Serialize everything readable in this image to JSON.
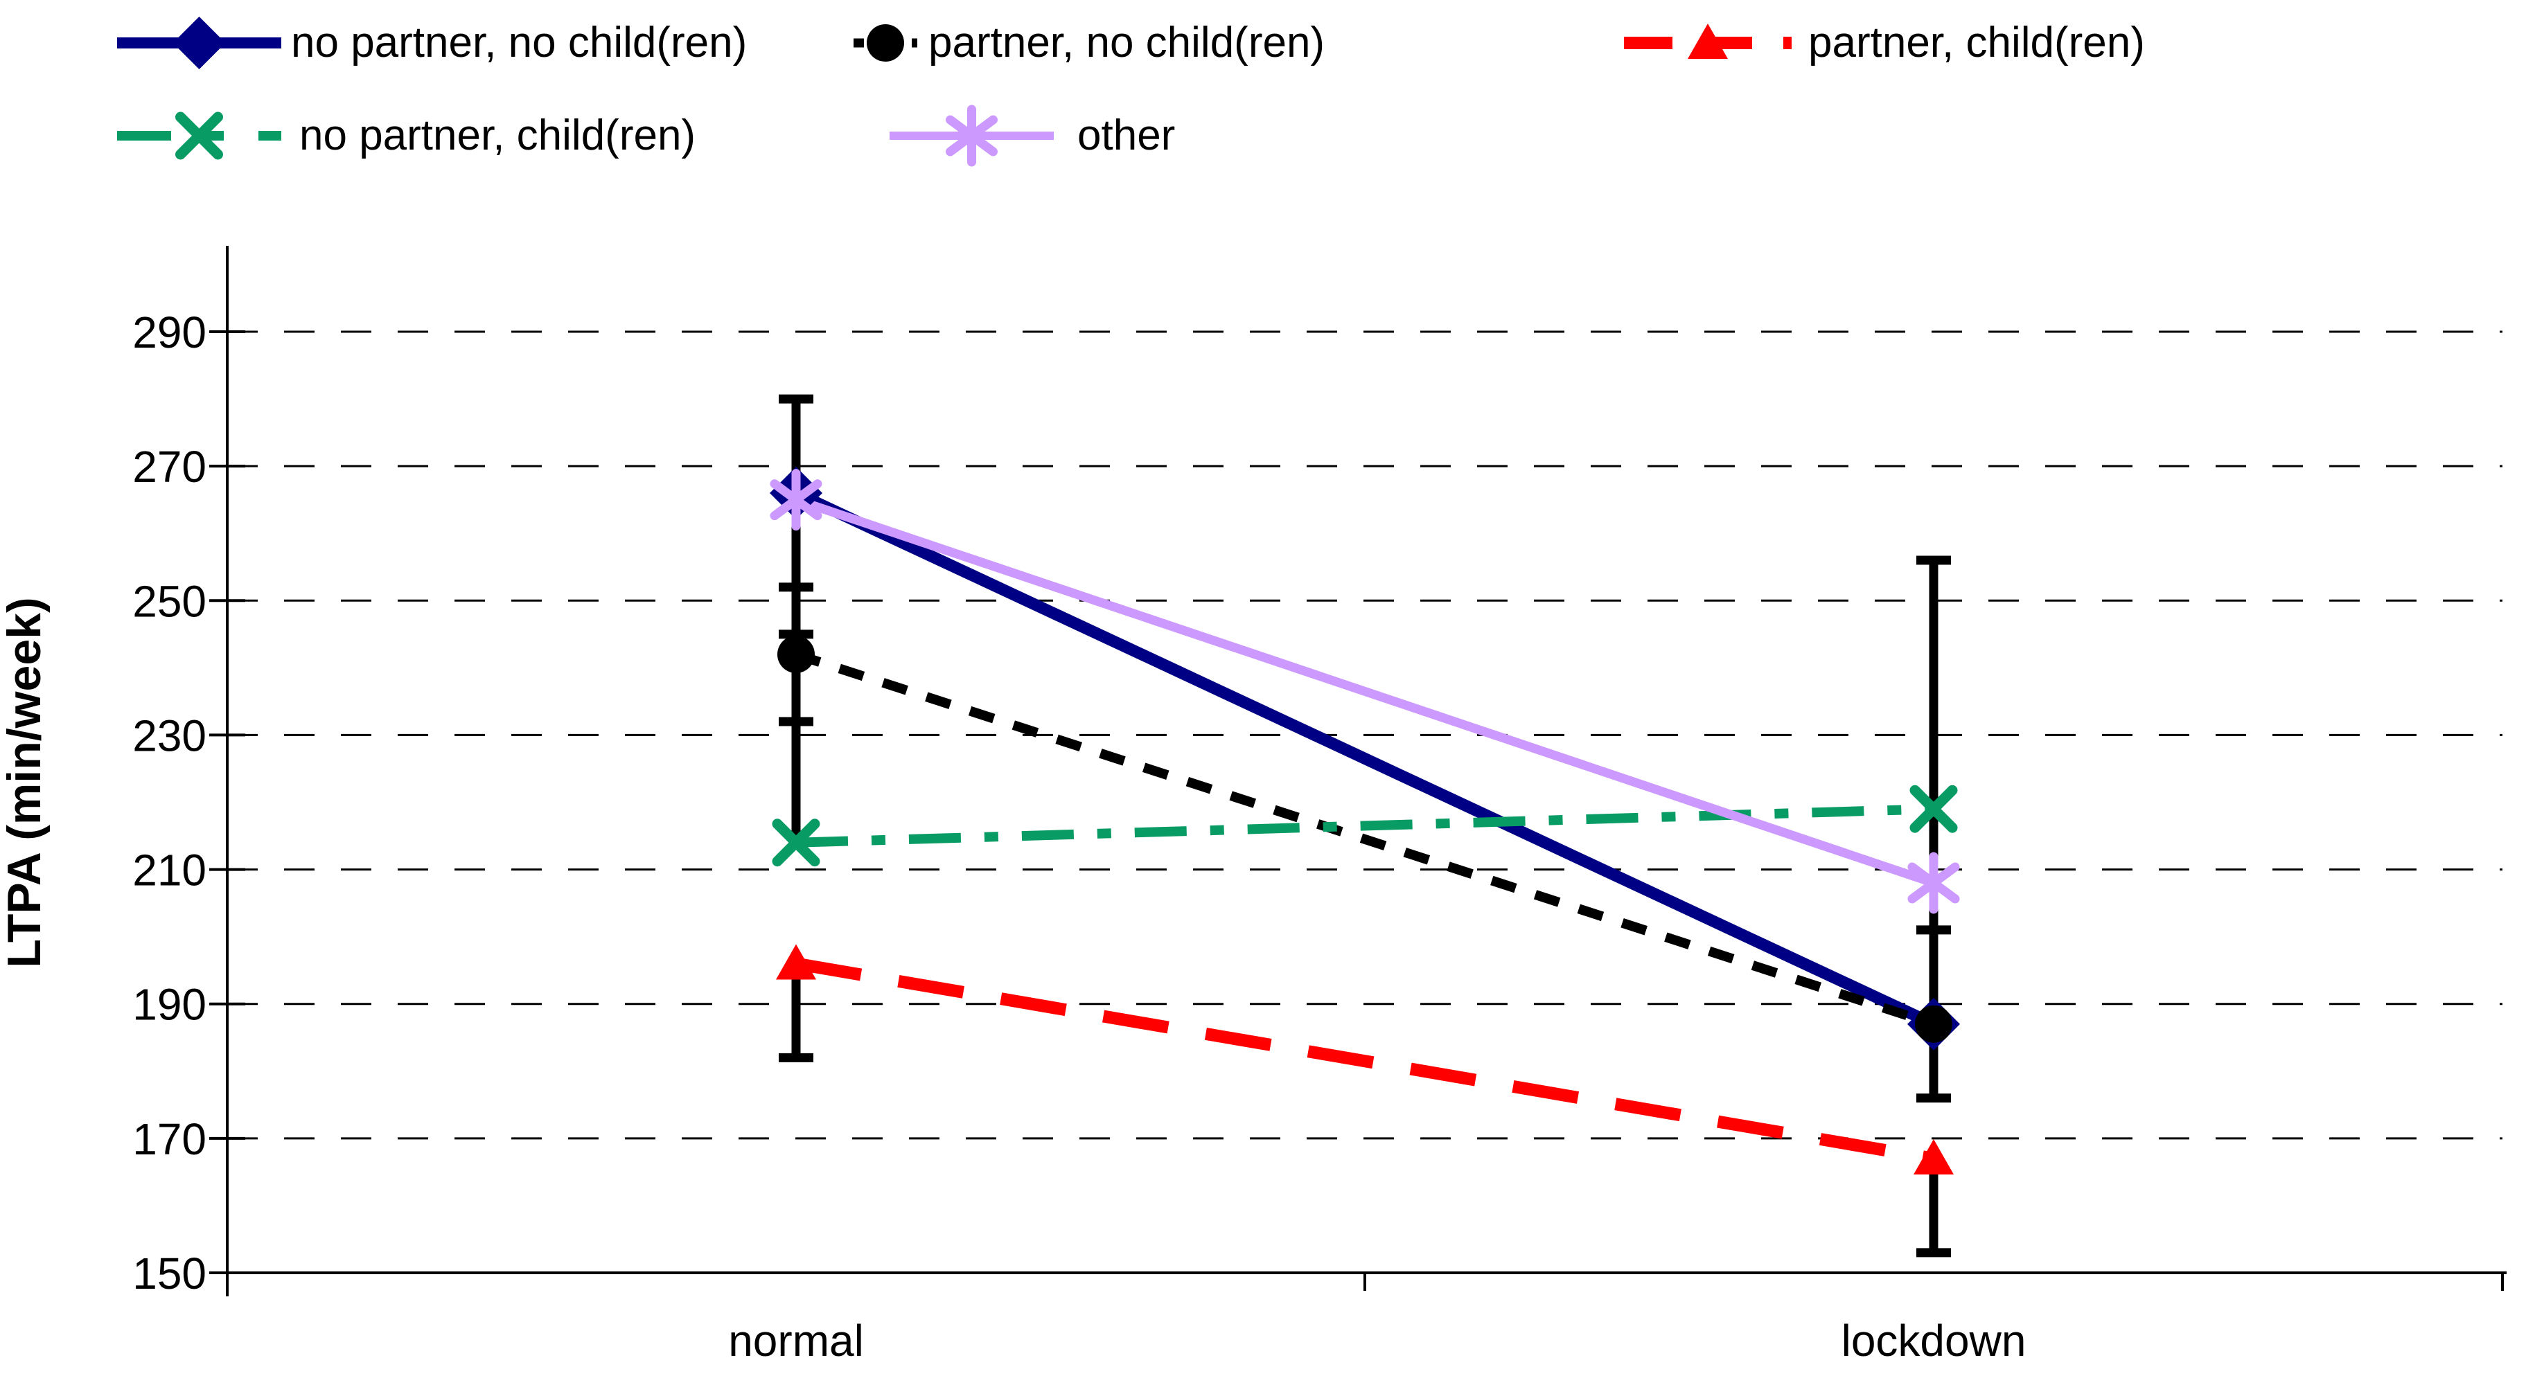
{
  "chart_data": {
    "type": "line",
    "title": "",
    "xlabel": "",
    "ylabel": "LTPA (min/week)",
    "categories": [
      "normal",
      "lockdown"
    ],
    "ylim": [
      150,
      290
    ],
    "yticks": [
      150,
      170,
      190,
      210,
      230,
      250,
      270,
      290
    ],
    "grid": "horizontal-dashed",
    "legend_position": "top",
    "background_color": "#ffffff",
    "axis_color": "#000000",
    "series": [
      {
        "name": "no partner, no child(ren)",
        "color": "#000085",
        "line": "solid",
        "marker": "diamond",
        "values": [
          266,
          187
        ]
      },
      {
        "name": "partner, no child(ren)",
        "color": "#000000",
        "line": "dashed",
        "marker": "circle",
        "values": [
          242,
          187
        ]
      },
      {
        "name": "partner, child(ren)",
        "color": "#ff0000",
        "line": "long-dash",
        "marker": "triangle",
        "values": [
          196,
          167
        ]
      },
      {
        "name": "no partner, child(ren)",
        "color": "#089b64",
        "line": "dash-dot",
        "marker": "x",
        "values": [
          214,
          219
        ]
      },
      {
        "name": "other",
        "color": "#cc99ff",
        "line": "solid",
        "marker": "asterisk",
        "values": [
          265,
          208
        ]
      }
    ],
    "error_bars": {
      "color": "#000000",
      "normal": [
        {
          "from": 214,
          "to": 280,
          "caps": [
            280,
            252,
            245,
            232
          ]
        },
        {
          "from": 182,
          "to": 196,
          "caps": [
            182
          ]
        }
      ],
      "lockdown": [
        {
          "from": 176,
          "to": 256,
          "caps": [
            256,
            201,
            176
          ]
        },
        {
          "from": 153,
          "to": 167,
          "caps": [
            153
          ]
        }
      ]
    }
  }
}
